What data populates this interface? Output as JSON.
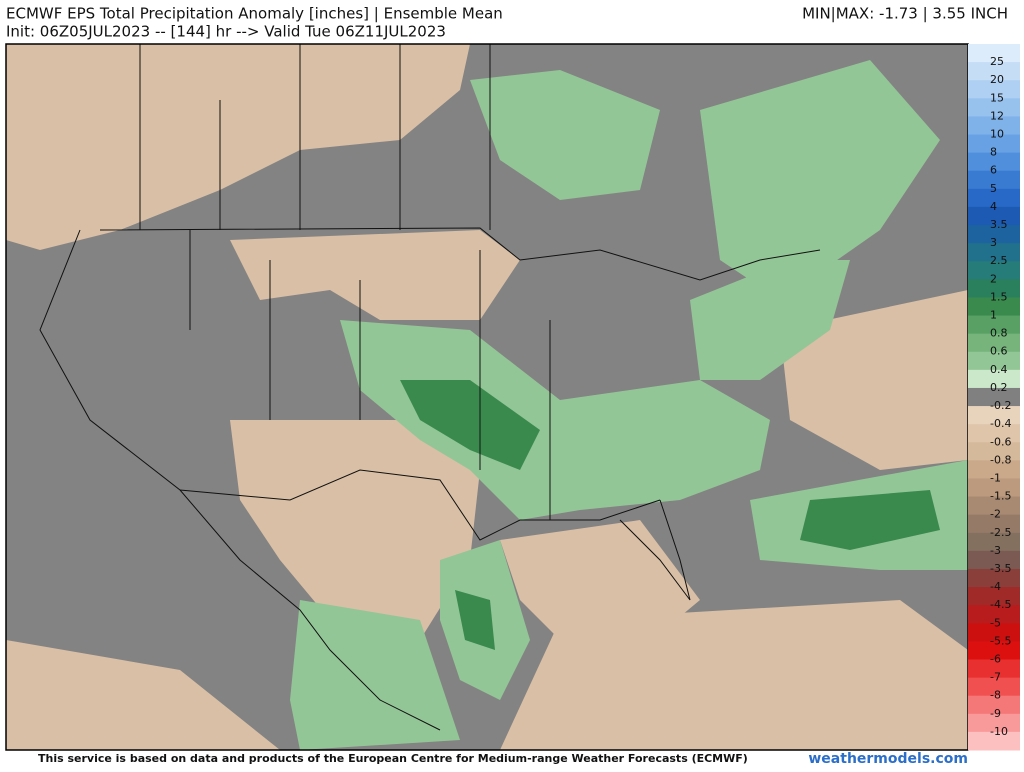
{
  "header": {
    "title": "ECMWF EPS Total Precipitation Anomaly [inches] | Ensemble Mean",
    "subtitle": "Init: 06Z05JUL2023 -- [144] hr --> Valid Tue 06Z11JUL2023",
    "minmax": "MIN|MAX: -1.73 | 3.55 INCH"
  },
  "colorbar": {
    "labels": [
      25,
      20,
      15,
      12,
      10,
      8,
      6,
      5,
      4,
      3.5,
      3,
      2.5,
      2,
      1.5,
      1,
      0.8,
      0.6,
      0.4,
      0.2,
      -0.2,
      -0.4,
      -0.6,
      -0.8,
      -1,
      -1.5,
      -2,
      -2.5,
      -3,
      -3.5,
      -4,
      -4.5,
      -5,
      -5.5,
      -6,
      -7,
      -8,
      -9,
      -10
    ],
    "colors": [
      "#dcecfa",
      "#c6ddf6",
      "#afd0f2",
      "#98c2ee",
      "#80b2ea",
      "#68a2e4",
      "#4f8fdc",
      "#3a7bd2",
      "#2868c6",
      "#1c5ab4",
      "#1d63a0",
      "#21708c",
      "#267c78",
      "#2a7f5c",
      "#3a8a4e",
      "#58a064",
      "#76b47c",
      "#93c696",
      "#cce8ca",
      "#808080",
      "#e8d3bc",
      "#dfc6ab",
      "#d5b99b",
      "#caa98a",
      "#bb9a7e",
      "#a88a72",
      "#967a68",
      "#84705f",
      "#7a5a52",
      "#8a3f3a",
      "#a02a28",
      "#b81c1c",
      "#cc1010",
      "#dd1010",
      "#e83030",
      "#f05050",
      "#f57878",
      "#f99a9a",
      "#fcc0c0"
    ]
  },
  "footer": {
    "credit": "This service is based on data and products of the European Centre for Medium-range Weather Forecasts (ECMWF)",
    "site": "weathermodels.com"
  }
}
